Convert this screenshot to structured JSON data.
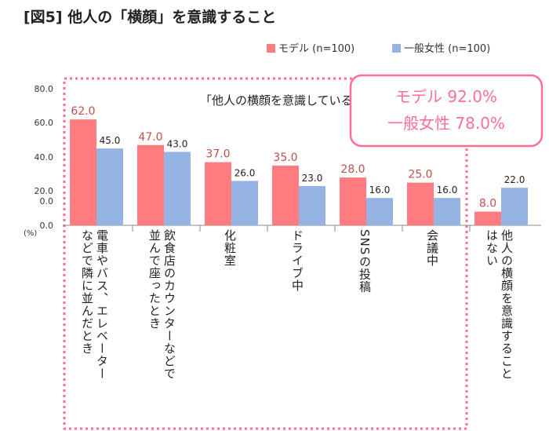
{
  "title": "[図5] 他人の「横顔」を意識すること",
  "legend": {
    "model": "モデル (n=100)",
    "general": "一般女性 (n=100)"
  },
  "annotation": {
    "aware_total_label": "「他人の横顔を意識している」計",
    "model_total": "モデル 92.0%",
    "general_total": "一般女性 78.0%"
  },
  "colors": {
    "model": "#ff7b7f",
    "general": "#95b3e3",
    "model_text": "#c0504d",
    "box_border": "#ff6f8f"
  },
  "chart_data": {
    "type": "bar",
    "title": "[図5] 他人の「横顔」を意識すること",
    "categories": [
      "電車やバス、エレベーターなどで隣に並んだとき",
      "飲食店のカウンターなどで並んで座ったとき",
      "化粧室",
      "ドライブ中",
      "SNSの投稿",
      "会議中",
      "他人の横顔を意識することはない"
    ],
    "category_lines": [
      [
        "電車やバス、エレベーター",
        "などで隣に並んだとき"
      ],
      [
        "飲食店のカウンターなどで",
        "並んで座ったとき"
      ],
      [
        "化粧室"
      ],
      [
        "ドライブ中"
      ],
      [
        "SNSの投稿"
      ],
      [
        "会議中"
      ],
      [
        "他人の横顔を意識すること",
        "はない"
      ]
    ],
    "series": [
      {
        "name": "モデル (n=100)",
        "values": [
          62.0,
          47.0,
          37.0,
          35.0,
          28.0,
          25.0,
          8.0
        ]
      },
      {
        "name": "一般女性 (n=100)",
        "values": [
          45.0,
          43.0,
          26.0,
          23.0,
          16.0,
          16.0,
          22.0
        ]
      }
    ],
    "yticks": [
      "80.0",
      "60.0",
      "40.0",
      "20.0",
      "0.0",
      "0.0"
    ],
    "yunit": "(%)",
    "ylim": [
      0,
      80
    ],
    "legend_position": "top-right",
    "grid": false
  }
}
